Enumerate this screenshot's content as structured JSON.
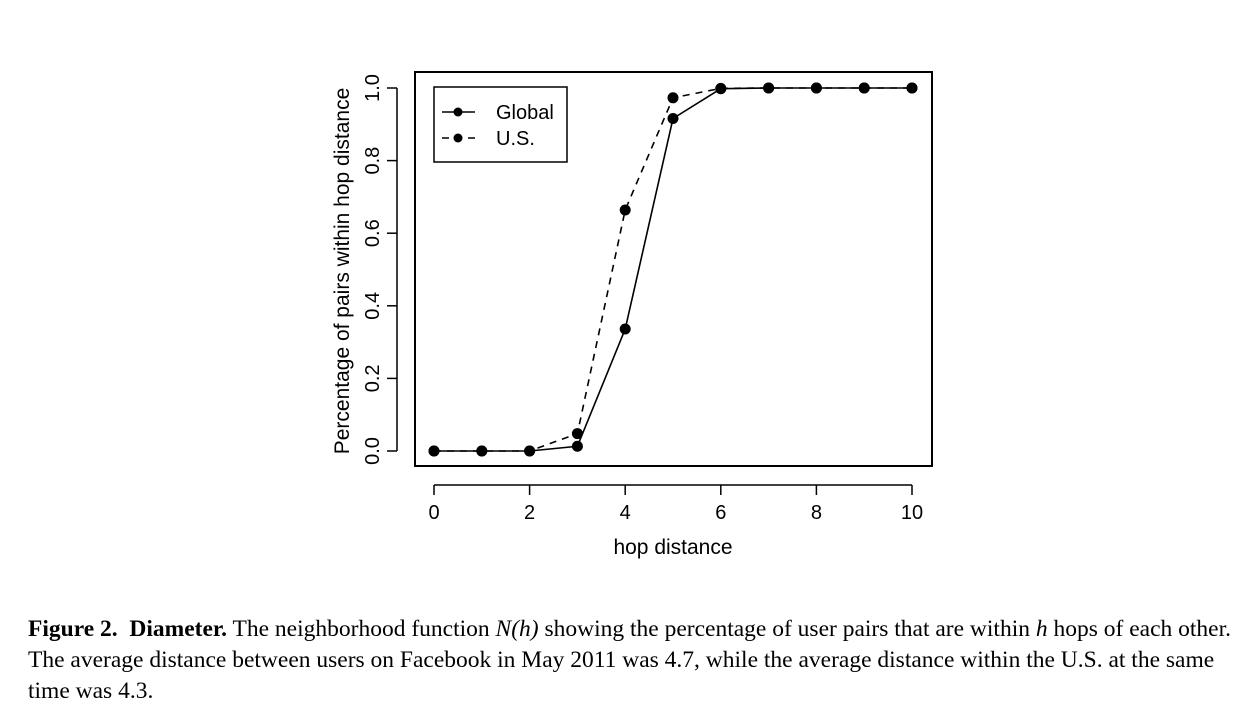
{
  "chart_data": {
    "type": "line",
    "xlabel": "hop distance",
    "ylabel": "Percentage of pairs within hop distance",
    "x": [
      0,
      1,
      2,
      3,
      4,
      5,
      6,
      7,
      8,
      9,
      10
    ],
    "xlim": [
      0,
      10
    ],
    "ylim": [
      0.0,
      1.0
    ],
    "xticks": [
      "0",
      "2",
      "4",
      "6",
      "8",
      "10"
    ],
    "yticks": [
      "0.0",
      "0.2",
      "0.4",
      "0.6",
      "0.8",
      "1.0"
    ],
    "grid": false,
    "legend_position": "top-left",
    "series": [
      {
        "name": "Global",
        "style": "solid",
        "values": [
          0.0,
          0.0,
          0.0,
          0.013,
          0.336,
          0.916,
          0.998,
          1.0,
          1.0,
          1.0,
          1.0
        ]
      },
      {
        "name": "U.S.",
        "style": "dashed",
        "values": [
          0.0,
          0.0,
          0.0,
          0.048,
          0.664,
          0.973,
          0.999,
          1.0,
          1.0,
          1.0,
          1.0
        ]
      }
    ]
  },
  "caption": {
    "label": "Figure 2.",
    "title": "Diameter.",
    "text_1": "The neighborhood function ",
    "math_1": "N(h)",
    "text_2": " showing the percentage of user pairs that are within ",
    "math_2": "h",
    "text_3": " hops of each other. The average distance between users on Facebook in May 2011 was 4.7, while the average distance within the U.S. at the same time was 4.3."
  }
}
